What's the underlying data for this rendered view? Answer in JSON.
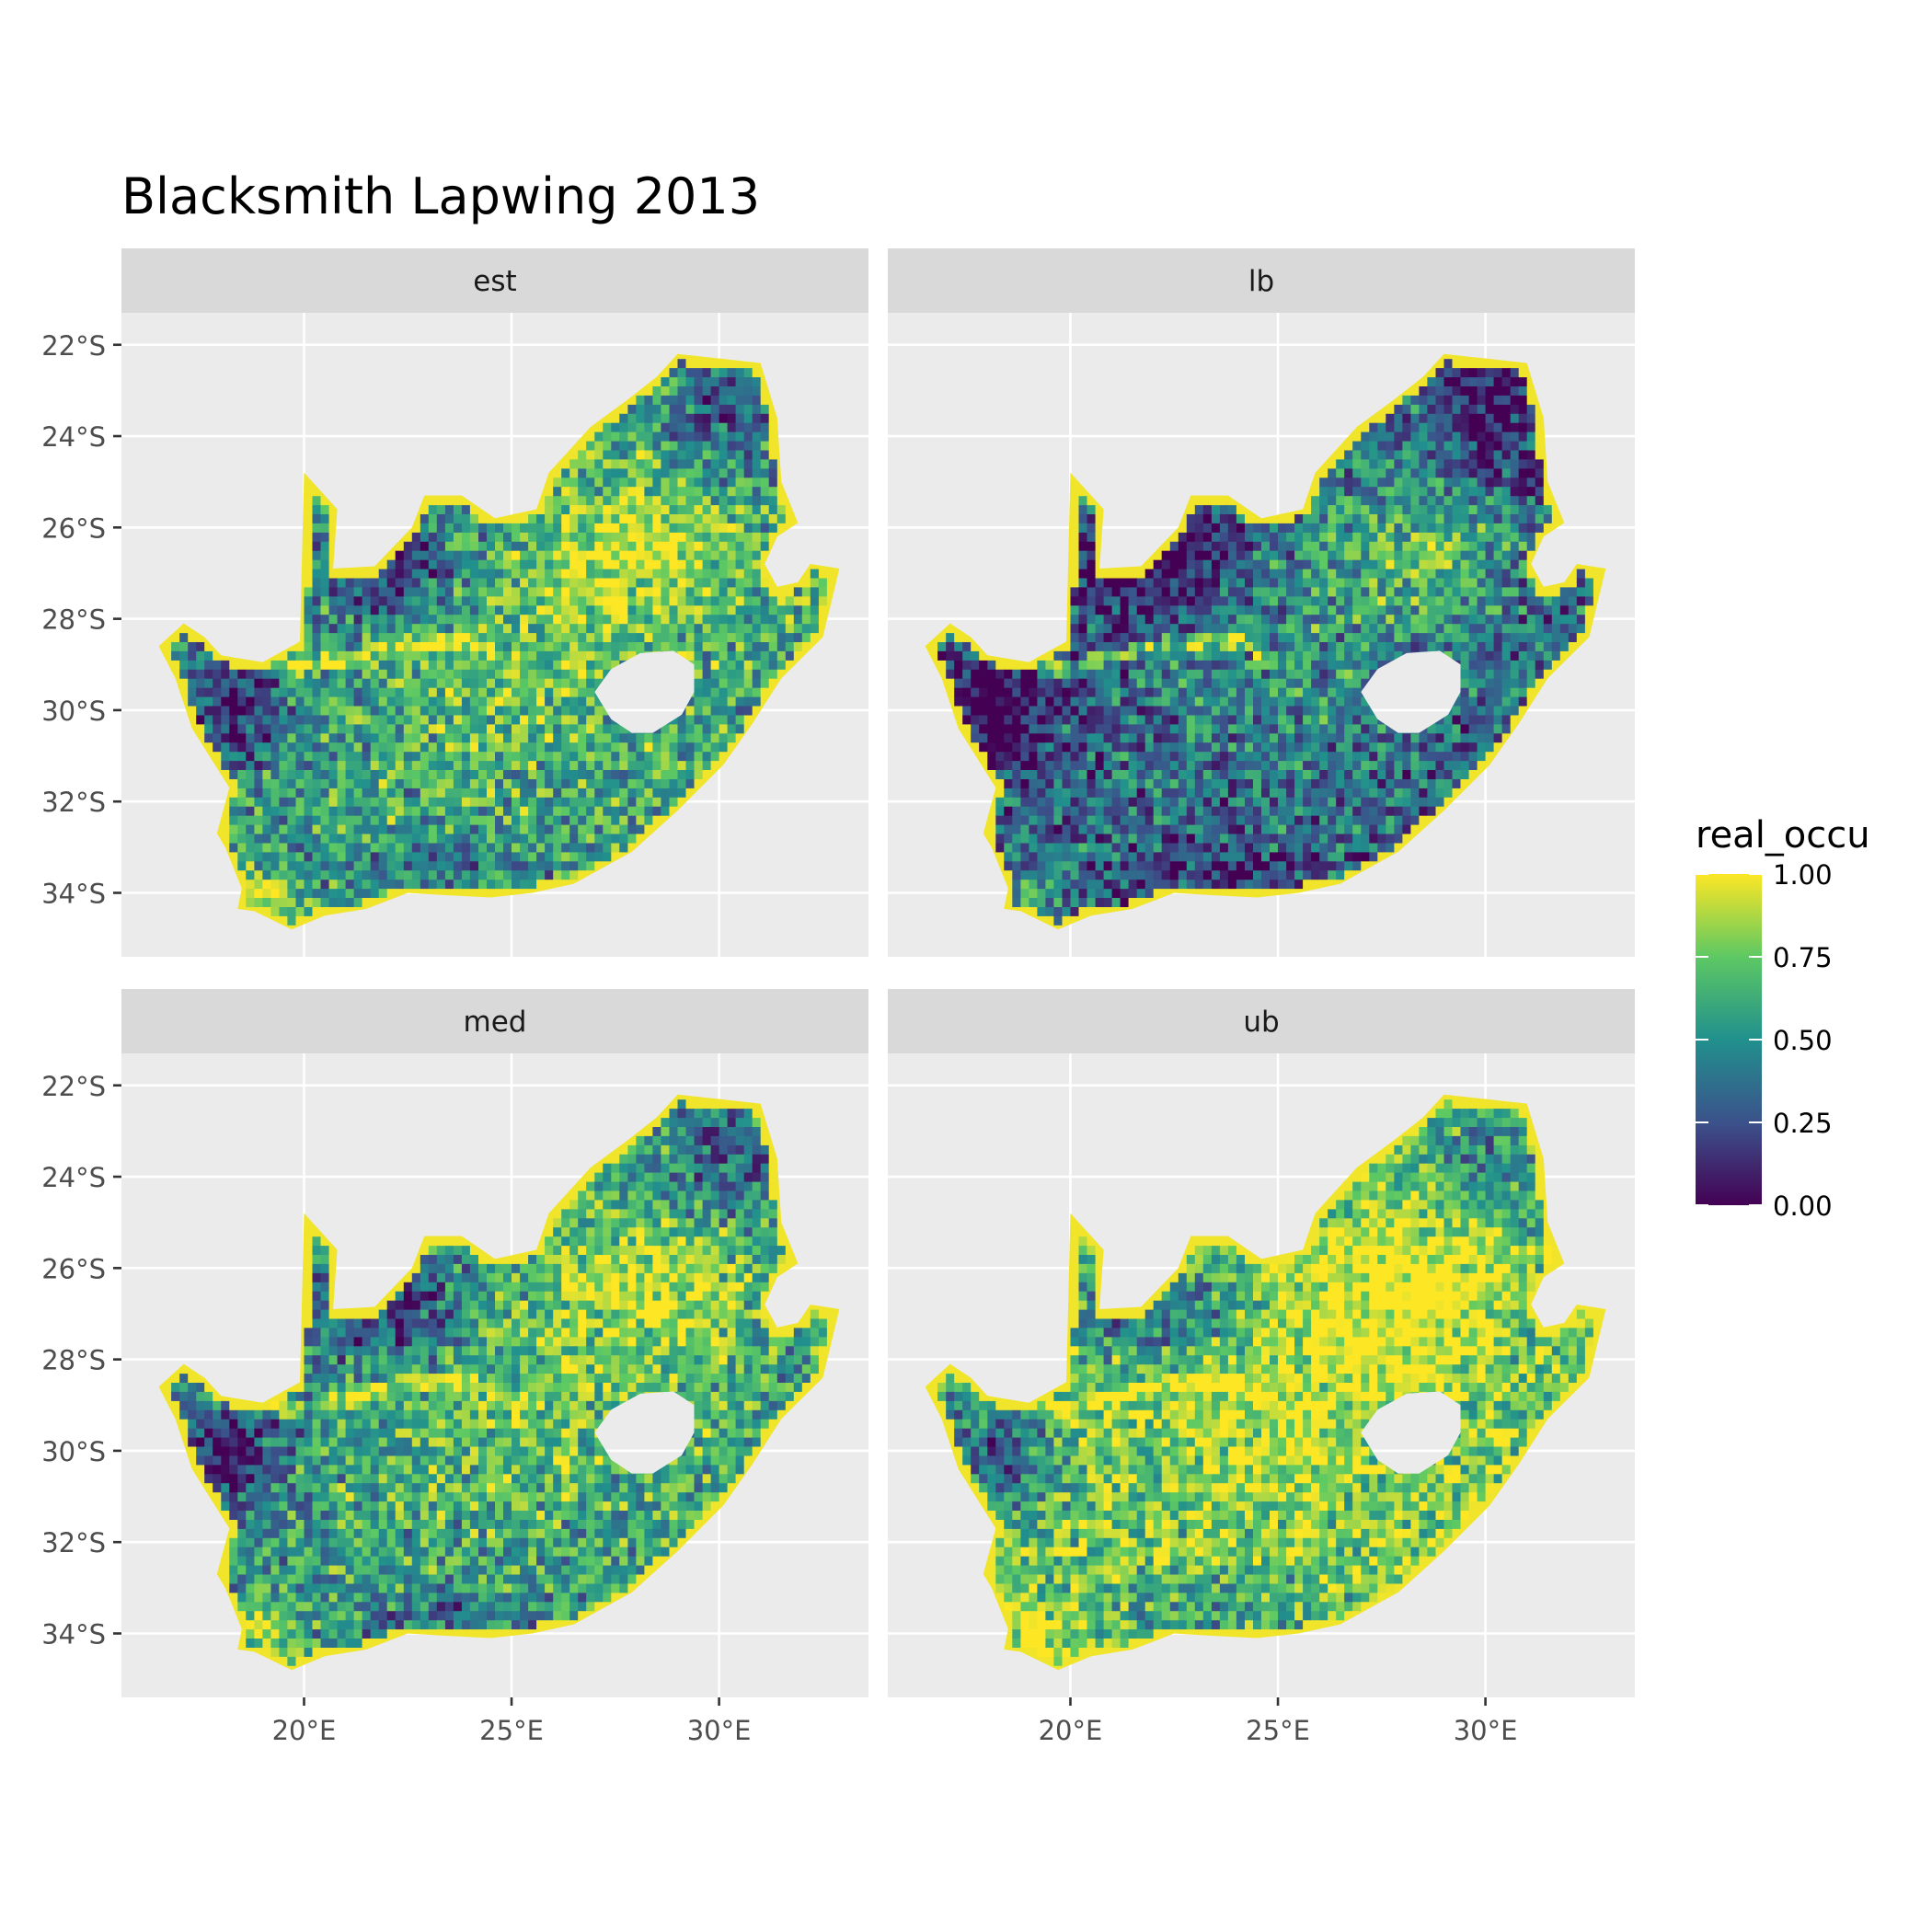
{
  "figure": {
    "title": "Blacksmith Lapwing 2013"
  },
  "chart_data": {
    "type": "heatmap",
    "title": "Blacksmith Lapwing 2013",
    "facets": [
      "est",
      "lb",
      "med",
      "ub"
    ],
    "x_axis": {
      "ticks": [
        20,
        25,
        30
      ],
      "tick_labels": [
        "20°E",
        "25°E",
        "30°E"
      ],
      "range": [
        15.6,
        33.6
      ]
    },
    "y_axis": {
      "ticks": [
        -22,
        -24,
        -26,
        -28,
        -30,
        -32,
        -34
      ],
      "tick_labels": [
        "22°S",
        "24°S",
        "26°S",
        "28°S",
        "30°S",
        "32°S",
        "34°S"
      ],
      "range": [
        -35.4,
        -21.3
      ]
    },
    "legend": {
      "title": "real_occu",
      "placement": "right",
      "ticks": [
        1.0,
        0.75,
        0.5,
        0.25,
        0.0
      ],
      "tick_labels": [
        "1.00",
        "0.75",
        "0.50",
        "0.25",
        "0.00"
      ],
      "range": [
        0,
        1
      ],
      "palette": [
        "#440154",
        "#3b528b",
        "#21908d",
        "#5dc863",
        "#fde725"
      ]
    },
    "grid": true,
    "panel_background": "#ebebeb",
    "strip_background": "#d9d9d9"
  }
}
